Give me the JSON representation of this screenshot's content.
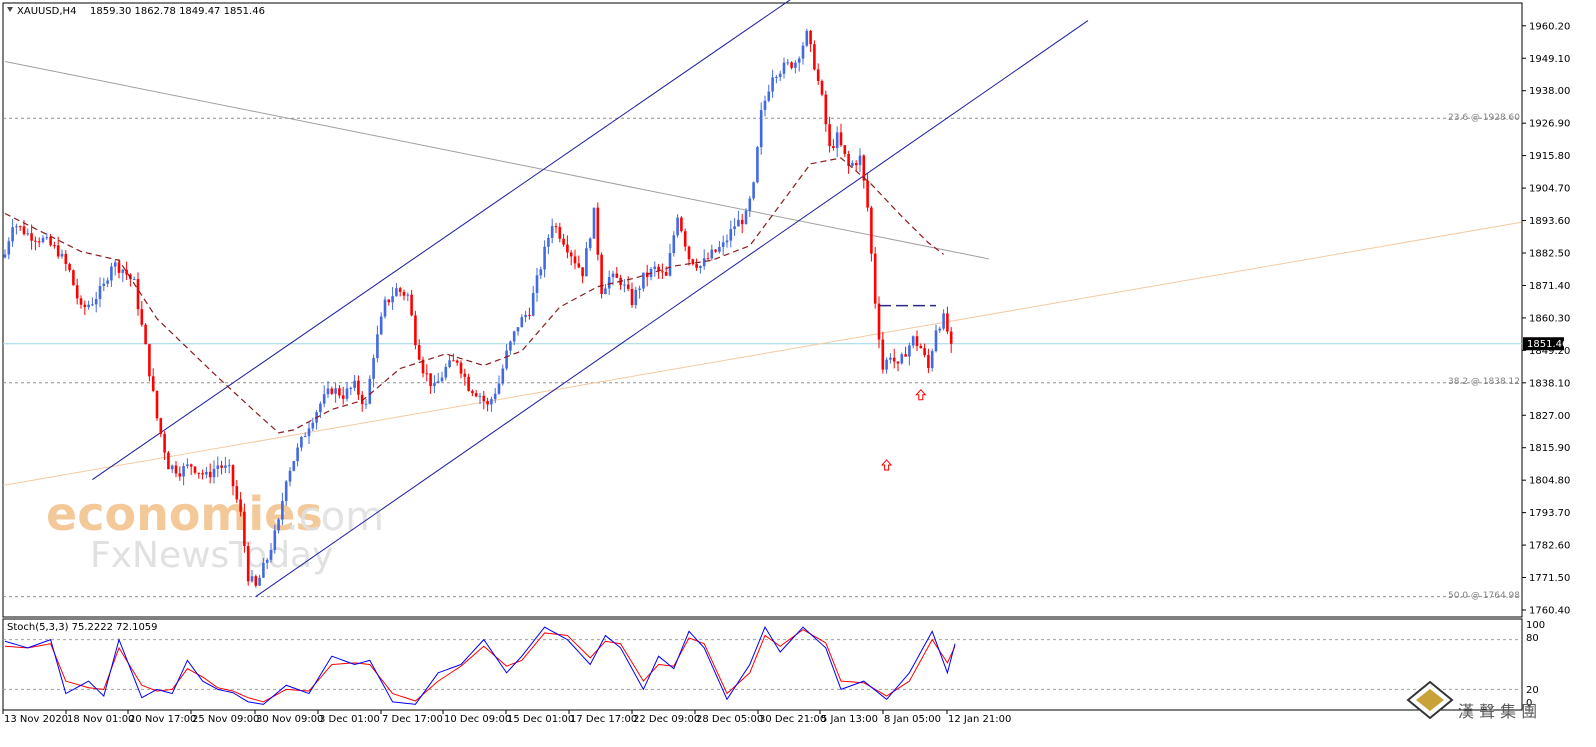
{
  "header": {
    "symbol": "XAUUSD,H4",
    "ohlc": "1859.30 1862.78 1849.47 1851.46"
  },
  "current_price_label": "1851.46",
  "fib_labels": [
    {
      "text": "23.6 @ 1928.60",
      "value": 1928.6
    },
    {
      "text": "38.2 @ 1838.12",
      "value": 1838.12
    },
    {
      "text": "50.0 @ 1764.98",
      "value": 1764.98
    }
  ],
  "watermark": {
    "line1_a": "economies",
    "line1_b": ".com",
    "line2": "FxNewsToday"
  },
  "logo": {
    "text": "漢 聲 集 團"
  },
  "indicator": {
    "label": "Stoch(5,3,3) 75.2222 72.1059",
    "levels": [
      "100",
      "80",
      "20",
      "0"
    ]
  },
  "colors": {
    "bull": "#4169e1",
    "bear": "#ff0000",
    "channel": "#1a1aa0",
    "ma": "#8b1a1a",
    "trend_grey": "#a0a0a0",
    "trend_peach": "#f5c9a0",
    "current_line": "#9ad6e6",
    "stoch_main": "#0000ff",
    "stoch_signal": "#ff0000",
    "arrow": "#ff0000"
  },
  "chart_data": {
    "type": "candlestick",
    "symbol": "XAUUSD",
    "timeframe": "H4",
    "ylim": [
      1758,
      1968
    ],
    "y_ticks": [
      "1960.20",
      "1949.10",
      "1938.00",
      "1926.90",
      "1915.80",
      "1904.70",
      "1893.60",
      "1882.50",
      "1871.40",
      "1860.30",
      "1849.20",
      "1838.10",
      "1827.00",
      "1815.90",
      "1804.80",
      "1793.70",
      "1782.60",
      "1771.50",
      "1760.40"
    ],
    "x_ticks": [
      "13 Nov 2020",
      "18 Nov 01:00",
      "20 Nov 17:00",
      "25 Nov 09:00",
      "30 Nov 09:00",
      "3 Dec 01:00",
      "7 Dec 17:00",
      "10 Dec 09:00",
      "15 Dec 01:00",
      "17 Dec 17:00",
      "22 Dec 09:00",
      "28 Dec 05:00",
      "30 Dec 21:00",
      "5 Jan 13:00",
      "8 Jan 05:00",
      "12 Jan 21:00"
    ],
    "current_price": 1851.46,
    "close_anchors": [
      [
        0,
        1882
      ],
      [
        2,
        1893
      ],
      [
        6,
        1889
      ],
      [
        10,
        1887
      ],
      [
        14,
        1883
      ],
      [
        17,
        1876
      ],
      [
        20,
        1863
      ],
      [
        23,
        1866
      ],
      [
        26,
        1871
      ],
      [
        28,
        1879
      ],
      [
        31,
        1877
      ],
      [
        34,
        1872
      ],
      [
        37,
        1850
      ],
      [
        40,
        1826
      ],
      [
        43,
        1810
      ],
      [
        46,
        1808
      ],
      [
        49,
        1810
      ],
      [
        53,
        1806
      ],
      [
        56,
        1810
      ],
      [
        59,
        1808
      ],
      [
        62,
        1793
      ],
      [
        64,
        1772
      ],
      [
        66,
        1768
      ],
      [
        69,
        1778
      ],
      [
        72,
        1790
      ],
      [
        74,
        1806
      ],
      [
        77,
        1815
      ],
      [
        80,
        1824
      ],
      [
        83,
        1831
      ],
      [
        86,
        1836
      ],
      [
        89,
        1834
      ],
      [
        92,
        1837
      ],
      [
        95,
        1830
      ],
      [
        97,
        1848
      ],
      [
        100,
        1865
      ],
      [
        103,
        1870
      ],
      [
        106,
        1868
      ],
      [
        108,
        1853
      ],
      [
        110,
        1843
      ],
      [
        113,
        1836
      ],
      [
        116,
        1843
      ],
      [
        119,
        1846
      ],
      [
        122,
        1837
      ],
      [
        125,
        1834
      ],
      [
        127,
        1830
      ],
      [
        130,
        1838
      ],
      [
        132,
        1848
      ],
      [
        135,
        1858
      ],
      [
        138,
        1863
      ],
      [
        141,
        1878
      ],
      [
        144,
        1893
      ],
      [
        147,
        1887
      ],
      [
        150,
        1880
      ],
      [
        152,
        1876
      ],
      [
        155,
        1896
      ],
      [
        157,
        1870
      ],
      [
        159,
        1874
      ],
      [
        162,
        1873
      ],
      [
        165,
        1866
      ],
      [
        168,
        1874
      ],
      [
        171,
        1877
      ],
      [
        174,
        1874
      ],
      [
        177,
        1896
      ],
      [
        180,
        1881
      ],
      [
        183,
        1878
      ],
      [
        186,
        1882
      ],
      [
        189,
        1885
      ],
      [
        192,
        1892
      ],
      [
        195,
        1895
      ],
      [
        197,
        1905
      ],
      [
        199,
        1930
      ],
      [
        202,
        1944
      ],
      [
        205,
        1946
      ],
      [
        208,
        1948
      ],
      [
        211,
        1957
      ],
      [
        213,
        1947
      ],
      [
        215,
        1935
      ],
      [
        217,
        1918
      ],
      [
        219,
        1922
      ],
      [
        222,
        1912
      ],
      [
        225,
        1915
      ],
      [
        227,
        1898
      ],
      [
        229,
        1866
      ],
      [
        231,
        1843
      ],
      [
        233,
        1848
      ],
      [
        235,
        1843
      ],
      [
        237,
        1849
      ],
      [
        239,
        1853
      ],
      [
        241,
        1850
      ],
      [
        243,
        1843
      ],
      [
        245,
        1857
      ],
      [
        247,
        1860
      ],
      [
        249,
        1851.46
      ]
    ],
    "moving_average_approx": [
      [
        0,
        1896
      ],
      [
        20,
        1883
      ],
      [
        30,
        1880
      ],
      [
        40,
        1860
      ],
      [
        56,
        1840
      ],
      [
        66,
        1828
      ],
      [
        72,
        1821
      ],
      [
        76,
        1822
      ],
      [
        86,
        1829
      ],
      [
        94,
        1832
      ],
      [
        104,
        1843
      ],
      [
        116,
        1848
      ],
      [
        126,
        1844
      ],
      [
        136,
        1849
      ],
      [
        146,
        1864
      ],
      [
        156,
        1871
      ],
      [
        166,
        1874
      ],
      [
        176,
        1878
      ],
      [
        186,
        1880
      ],
      [
        196,
        1885
      ],
      [
        204,
        1899
      ],
      [
        212,
        1913
      ],
      [
        220,
        1915
      ],
      [
        228,
        1906
      ],
      [
        236,
        1895
      ],
      [
        243,
        1886
      ],
      [
        247,
        1882
      ]
    ],
    "stochastic": {
      "label": "Stoch(5,3,3) 75.2222 72.1059",
      "params": [
        5,
        3,
        3
      ],
      "main_last": 75.2222,
      "signal_last": 72.1059,
      "levels": [
        0,
        20,
        80,
        100
      ],
      "main_anchors": [
        [
          0,
          78
        ],
        [
          6,
          70
        ],
        [
          12,
          80
        ],
        [
          16,
          15
        ],
        [
          22,
          30
        ],
        [
          26,
          12
        ],
        [
          30,
          80
        ],
        [
          36,
          10
        ],
        [
          40,
          20
        ],
        [
          44,
          15
        ],
        [
          48,
          55
        ],
        [
          52,
          30
        ],
        [
          56,
          20
        ],
        [
          60,
          16
        ],
        [
          64,
          5
        ],
        [
          68,
          2
        ],
        [
          74,
          25
        ],
        [
          80,
          15
        ],
        [
          86,
          60
        ],
        [
          92,
          50
        ],
        [
          96,
          55
        ],
        [
          102,
          5
        ],
        [
          108,
          2
        ],
        [
          114,
          40
        ],
        [
          120,
          50
        ],
        [
          126,
          80
        ],
        [
          132,
          40
        ],
        [
          136,
          60
        ],
        [
          142,
          95
        ],
        [
          148,
          80
        ],
        [
          154,
          50
        ],
        [
          158,
          85
        ],
        [
          162,
          70
        ],
        [
          168,
          20
        ],
        [
          172,
          60
        ],
        [
          176,
          45
        ],
        [
          180,
          90
        ],
        [
          184,
          70
        ],
        [
          190,
          8
        ],
        [
          196,
          50
        ],
        [
          200,
          95
        ],
        [
          204,
          65
        ],
        [
          210,
          95
        ],
        [
          216,
          70
        ],
        [
          220,
          20
        ],
        [
          226,
          30
        ],
        [
          232,
          8
        ],
        [
          238,
          40
        ],
        [
          244,
          90
        ],
        [
          248,
          40
        ],
        [
          250,
          75
        ]
      ],
      "signal_anchors": [
        [
          0,
          72
        ],
        [
          6,
          70
        ],
        [
          12,
          75
        ],
        [
          16,
          30
        ],
        [
          22,
          22
        ],
        [
          26,
          20
        ],
        [
          30,
          70
        ],
        [
          36,
          25
        ],
        [
          40,
          18
        ],
        [
          44,
          20
        ],
        [
          48,
          45
        ],
        [
          52,
          35
        ],
        [
          56,
          22
        ],
        [
          60,
          18
        ],
        [
          64,
          10
        ],
        [
          68,
          5
        ],
        [
          74,
          20
        ],
        [
          80,
          18
        ],
        [
          86,
          50
        ],
        [
          92,
          52
        ],
        [
          96,
          50
        ],
        [
          102,
          15
        ],
        [
          108,
          6
        ],
        [
          114,
          30
        ],
        [
          120,
          48
        ],
        [
          126,
          72
        ],
        [
          132,
          48
        ],
        [
          136,
          55
        ],
        [
          142,
          88
        ],
        [
          148,
          85
        ],
        [
          154,
          58
        ],
        [
          158,
          78
        ],
        [
          162,
          75
        ],
        [
          168,
          30
        ],
        [
          172,
          50
        ],
        [
          176,
          48
        ],
        [
          180,
          82
        ],
        [
          184,
          75
        ],
        [
          190,
          15
        ],
        [
          196,
          40
        ],
        [
          200,
          85
        ],
        [
          204,
          72
        ],
        [
          210,
          92
        ],
        [
          216,
          76
        ],
        [
          220,
          30
        ],
        [
          226,
          28
        ],
        [
          232,
          12
        ],
        [
          238,
          30
        ],
        [
          244,
          80
        ],
        [
          248,
          52
        ],
        [
          250,
          72
        ]
      ]
    },
    "annotations": [
      {
        "type": "arrow-up",
        "at_bar": 232,
        "value": 1810
      },
      {
        "type": "arrow-up",
        "at_bar": 241,
        "value": 1834
      },
      {
        "type": "dashed-resistance",
        "from_bar": 230,
        "to_bar": 245,
        "value": 1864.5
      }
    ]
  }
}
